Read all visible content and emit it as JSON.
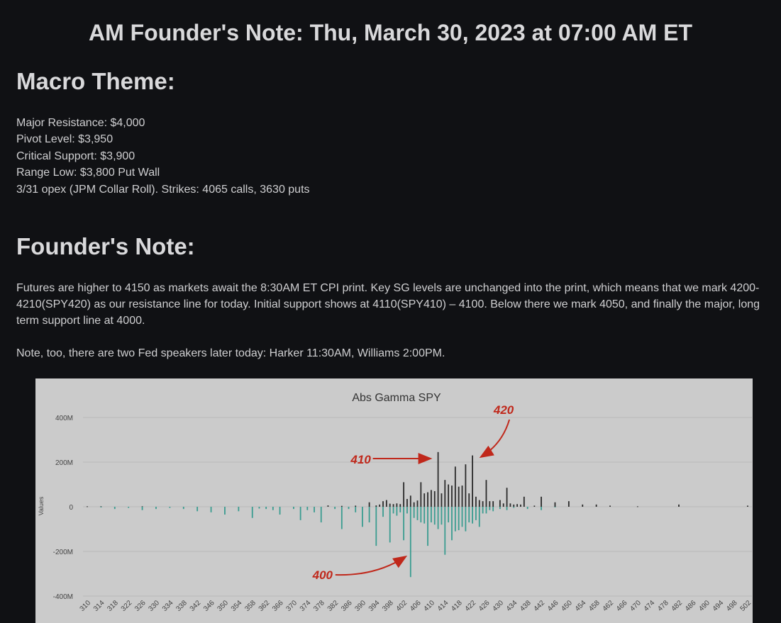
{
  "header": {
    "title": "AM Founder's Note: Thu, March 30, 2023 at 07:00 AM ET"
  },
  "macro": {
    "heading": "Macro Theme:",
    "lines": [
      "Major Resistance: $4,000",
      "Pivot Level: $3,950",
      "Critical Support: $3,900",
      "Range Low: $3,800 Put Wall",
      "3/31 opex (JPM Collar Roll). Strikes: 4065 calls, 3630 puts"
    ]
  },
  "founder": {
    "heading": "Founder's Note:",
    "paragraphs": [
      "Futures are higher to 4150 as markets await the 8:30AM ET CPI print. Key SG levels are unchanged into the print, which means that we mark 4200-4210(SPY420) as our resistance line for today. Initial support shows at 4110(SPY410) – 4100. Below there we mark 4050, and finally the major, long term support line at 4000.",
      "Note, too, there are two Fed speakers later today: Harker 11:30AM, Williams 2:00PM."
    ]
  },
  "chart_data": {
    "type": "bar",
    "title": "Abs Gamma SPY",
    "ylabel": "Values",
    "xlabel": "",
    "ylim": [
      -400,
      400
    ],
    "y_unit": "M",
    "yticks": [
      400,
      200,
      0,
      -200,
      -400
    ],
    "ytick_labels": [
      "400M",
      "200M",
      "0",
      "-200M",
      "-400M"
    ],
    "x_tick_labels": [
      "310",
      "314",
      "318",
      "322",
      "326",
      "330",
      "334",
      "338",
      "342",
      "346",
      "350",
      "354",
      "358",
      "362",
      "366",
      "370",
      "374",
      "378",
      "382",
      "386",
      "390",
      "394",
      "398",
      "402",
      "406",
      "410",
      "414",
      "418",
      "422",
      "426",
      "430",
      "434",
      "438",
      "442",
      "446",
      "450",
      "454",
      "458",
      "462",
      "466",
      "470",
      "474",
      "478",
      "482",
      "486",
      "490",
      "494",
      "498",
      "502"
    ],
    "strike_range": [
      310,
      502
    ],
    "series": [
      {
        "color": "#2a2a2a",
        "points": [
          [
            310,
            2
          ],
          [
            314,
            2
          ],
          [
            326,
            2
          ],
          [
            380,
            6
          ],
          [
            384,
            4
          ],
          [
            388,
            5
          ],
          [
            392,
            20
          ],
          [
            394,
            6
          ],
          [
            395,
            10
          ],
          [
            396,
            25
          ],
          [
            397,
            30
          ],
          [
            398,
            14
          ],
          [
            399,
            12
          ],
          [
            400,
            15
          ],
          [
            401,
            12
          ],
          [
            402,
            110
          ],
          [
            403,
            35
          ],
          [
            404,
            50
          ],
          [
            405,
            20
          ],
          [
            406,
            28
          ],
          [
            407,
            110
          ],
          [
            408,
            60
          ],
          [
            409,
            65
          ],
          [
            410,
            75
          ],
          [
            411,
            70
          ],
          [
            412,
            245
          ],
          [
            413,
            60
          ],
          [
            414,
            120
          ],
          [
            415,
            100
          ],
          [
            416,
            95
          ],
          [
            417,
            180
          ],
          [
            418,
            90
          ],
          [
            419,
            95
          ],
          [
            420,
            190
          ],
          [
            421,
            60
          ],
          [
            422,
            230
          ],
          [
            423,
            45
          ],
          [
            424,
            30
          ],
          [
            425,
            25
          ],
          [
            426,
            120
          ],
          [
            427,
            25
          ],
          [
            428,
            25
          ],
          [
            430,
            30
          ],
          [
            431,
            15
          ],
          [
            432,
            85
          ],
          [
            433,
            15
          ],
          [
            434,
            10
          ],
          [
            435,
            12
          ],
          [
            436,
            10
          ],
          [
            437,
            45
          ],
          [
            440,
            5
          ],
          [
            442,
            45
          ],
          [
            446,
            20
          ],
          [
            450,
            25
          ],
          [
            454,
            10
          ],
          [
            458,
            10
          ],
          [
            462,
            5
          ],
          [
            470,
            2
          ],
          [
            482,
            10
          ],
          [
            502,
            5
          ]
        ]
      },
      {
        "color": "#3a9c90",
        "points": [
          [
            314,
            -3
          ],
          [
            318,
            -10
          ],
          [
            322,
            -5
          ],
          [
            326,
            -15
          ],
          [
            330,
            -10
          ],
          [
            334,
            -5
          ],
          [
            338,
            -10
          ],
          [
            342,
            -20
          ],
          [
            346,
            -25
          ],
          [
            350,
            -35
          ],
          [
            354,
            -20
          ],
          [
            358,
            -50
          ],
          [
            360,
            -8
          ],
          [
            362,
            -10
          ],
          [
            364,
            -15
          ],
          [
            366,
            -35
          ],
          [
            370,
            -10
          ],
          [
            372,
            -60
          ],
          [
            374,
            -15
          ],
          [
            376,
            -25
          ],
          [
            378,
            -70
          ],
          [
            382,
            -10
          ],
          [
            384,
            -100
          ],
          [
            386,
            -10
          ],
          [
            388,
            -25
          ],
          [
            390,
            -90
          ],
          [
            392,
            -70
          ],
          [
            394,
            -175
          ],
          [
            396,
            -45
          ],
          [
            398,
            -160
          ],
          [
            399,
            -30
          ],
          [
            400,
            -40
          ],
          [
            401,
            -25
          ],
          [
            402,
            -150
          ],
          [
            403,
            -30
          ],
          [
            404,
            -315
          ],
          [
            405,
            -50
          ],
          [
            406,
            -60
          ],
          [
            407,
            -70
          ],
          [
            408,
            -75
          ],
          [
            409,
            -175
          ],
          [
            410,
            -70
          ],
          [
            411,
            -80
          ],
          [
            412,
            -100
          ],
          [
            413,
            -80
          ],
          [
            414,
            -215
          ],
          [
            415,
            -70
          ],
          [
            416,
            -150
          ],
          [
            417,
            -110
          ],
          [
            418,
            -105
          ],
          [
            419,
            -90
          ],
          [
            420,
            -110
          ],
          [
            421,
            -70
          ],
          [
            422,
            -75
          ],
          [
            423,
            -60
          ],
          [
            424,
            -90
          ],
          [
            425,
            -30
          ],
          [
            426,
            -30
          ],
          [
            427,
            -15
          ],
          [
            428,
            -20
          ],
          [
            430,
            -10
          ],
          [
            432,
            -15
          ],
          [
            434,
            -5
          ],
          [
            438,
            -10
          ],
          [
            442,
            -15
          ],
          [
            446,
            -2
          ]
        ]
      }
    ],
    "annotations": [
      {
        "text": "420",
        "strike": 422
      },
      {
        "text": "410",
        "strike": 412
      },
      {
        "text": "400",
        "strike": 404
      }
    ]
  },
  "colors": {
    "background": "#101114",
    "text": "#d4d4d6",
    "chart_bg": "#cbcbcb",
    "call_bar": "#2a2a2a",
    "put_bar": "#3a9c90",
    "annotation": "#c0281b"
  }
}
